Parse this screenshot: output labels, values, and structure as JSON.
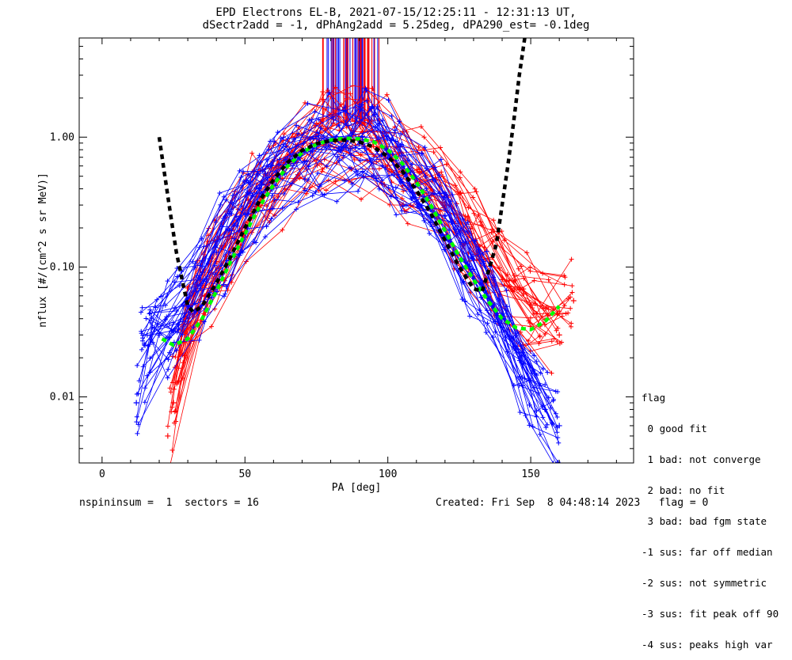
{
  "chart_data": {
    "type": "scatter",
    "title_line1": "EPD Electrons EL-B, 2021-07-15/12:25:11 - 12:31:13 UT,",
    "title_line2": "dSectr2add = -1, dPhAng2add = 5.25deg, dPA290_est=  -0.1deg",
    "xlabel": "PA [deg]",
    "ylabel": "nflux [#/(cm^2 s sr MeV)]",
    "xlim": [
      -8,
      186
    ],
    "ylim": [
      0.0031,
      5.8
    ],
    "yscale": "log",
    "x_ticks": [
      0,
      50,
      100,
      150
    ],
    "x_tick_labels": [
      "0",
      "50",
      "100",
      "150"
    ],
    "y_ticks": [
      0.01,
      0.1,
      1.0
    ],
    "y_tick_labels": [
      "0.01",
      "0.10",
      "1.00"
    ],
    "grid": false,
    "series": [
      {
        "color": "#ff0000",
        "marker": "+",
        "values": [
          [
            23,
            0.005
          ],
          [
            25,
            0.009
          ],
          [
            30,
            0.04
          ],
          [
            40,
            0.11
          ],
          [
            55,
            0.35
          ],
          [
            75,
            0.9
          ],
          [
            90,
            0.98
          ],
          [
            100,
            0.75
          ],
          [
            120,
            0.3
          ],
          [
            140,
            0.08
          ],
          [
            160,
            0.03
          ],
          [
            165,
            0.055
          ]
        ]
      },
      {
        "color": "#0000ff",
        "marker": "+",
        "values": [
          [
            12,
            0.009
          ],
          [
            15,
            0.025
          ],
          [
            20,
            0.03
          ],
          [
            30,
            0.05
          ],
          [
            40,
            0.13
          ],
          [
            55,
            0.4
          ],
          [
            75,
            0.85
          ],
          [
            90,
            0.95
          ],
          [
            100,
            0.7
          ],
          [
            120,
            0.25
          ],
          [
            140,
            0.04
          ],
          [
            155,
            0.008
          ],
          [
            160,
            0.006
          ]
        ]
      },
      {
        "name": "",
        "color": "#00ff00",
        "style": "dashed",
        "values": [
          [
            21,
            0.028
          ],
          [
            25,
            0.025
          ],
          [
            30,
            0.028
          ],
          [
            35,
            0.04
          ],
          [
            40,
            0.065
          ],
          [
            45,
            0.11
          ],
          [
            50,
            0.18
          ],
          [
            55,
            0.29
          ],
          [
            60,
            0.43
          ],
          [
            65,
            0.6
          ],
          [
            70,
            0.76
          ],
          [
            75,
            0.88
          ],
          [
            80,
            0.95
          ],
          [
            85,
            0.98
          ],
          [
            90,
            0.97
          ],
          [
            95,
            0.92
          ],
          [
            100,
            0.8
          ],
          [
            105,
            0.63
          ],
          [
            110,
            0.45
          ],
          [
            115,
            0.3
          ],
          [
            120,
            0.19
          ],
          [
            125,
            0.12
          ],
          [
            130,
            0.08
          ],
          [
            135,
            0.055
          ],
          [
            140,
            0.04
          ],
          [
            145,
            0.034
          ],
          [
            150,
            0.033
          ],
          [
            155,
            0.038
          ],
          [
            160,
            0.05
          ]
        ]
      },
      {
        "name": "",
        "color": "#000000",
        "style": "dashed",
        "values": [
          [
            20,
            1.0
          ],
          [
            22,
            0.5
          ],
          [
            24,
            0.25
          ],
          [
            26,
            0.13
          ],
          [
            28,
            0.08
          ],
          [
            30,
            0.05
          ],
          [
            32,
            0.045
          ],
          [
            35,
            0.05
          ],
          [
            40,
            0.075
          ],
          [
            45,
            0.12
          ],
          [
            50,
            0.2
          ],
          [
            55,
            0.32
          ],
          [
            60,
            0.47
          ],
          [
            65,
            0.64
          ],
          [
            70,
            0.79
          ],
          [
            75,
            0.89
          ],
          [
            80,
            0.94
          ],
          [
            85,
            0.95
          ],
          [
            90,
            0.92
          ],
          [
            95,
            0.84
          ],
          [
            100,
            0.71
          ],
          [
            105,
            0.55
          ],
          [
            110,
            0.39
          ],
          [
            115,
            0.26
          ],
          [
            120,
            0.16
          ],
          [
            125,
            0.1
          ],
          [
            130,
            0.068
          ],
          [
            133,
            0.065
          ],
          [
            135,
            0.09
          ],
          [
            138,
            0.15
          ],
          [
            140,
            0.3
          ],
          [
            142,
            0.6
          ],
          [
            144,
            1.3
          ],
          [
            146,
            3.0
          ],
          [
            148,
            6.0
          ]
        ]
      }
    ],
    "saturated_lines": {
      "x_range": [
        77,
        97
      ],
      "y_bottom": 1.2,
      "colors": [
        "#0000ff",
        "#ff0000"
      ]
    }
  },
  "legend": {
    "title": "flag",
    "items": [
      " 0 good fit",
      " 1 bad: not converge",
      " 2 bad: no fit",
      " 3 bad: bad fgm state",
      "-1 sus: far off median",
      "-2 sus: not symmetric",
      "-3 sus: fit peak off 90",
      "-4 sus: peaks high var"
    ]
  },
  "footer": {
    "left": "nspininsum =  1  sectors = 16",
    "right": "Created: Fri Sep  8 04:48:14 2023   flag = 0"
  }
}
